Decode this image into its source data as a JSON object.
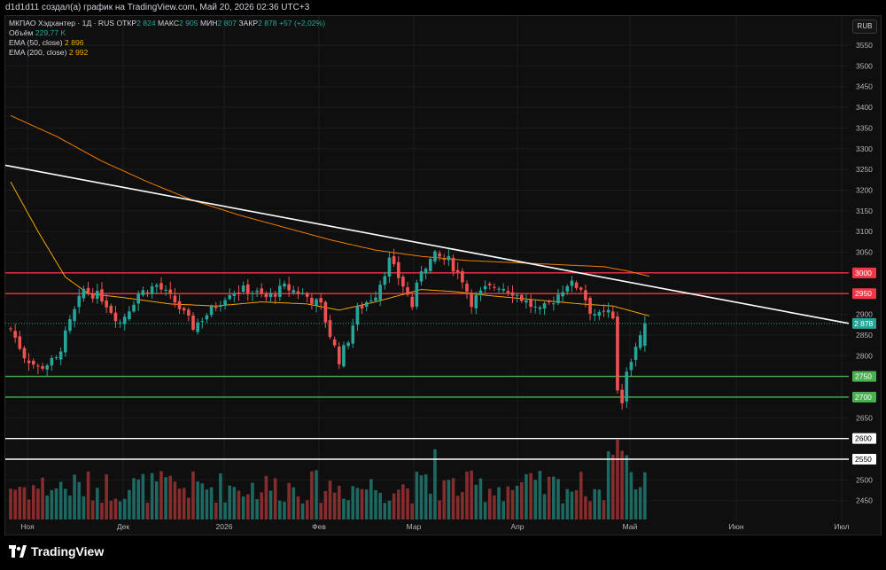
{
  "header": {
    "attribution": "d1d1d11 создал(а) график на TradingView.com, Май 20, 2026 02:36 UTC+3"
  },
  "legend": {
    "symbol": "МКПАО Хэдхантер · 1Д · RUS",
    "open_label": "ОТКР",
    "open": "2 824",
    "high_label": "МАКС",
    "high": "2 905",
    "low_label": "МИН",
    "low": "2 807",
    "close_label": "ЗАКР",
    "close": "2 878",
    "change": "+57 (+2,02%)",
    "volume_label": "Объём",
    "volume": "229,77 K",
    "ema50_label": "EMA (50, close)",
    "ema50": "2 896",
    "ema200_label": "EMA (200, close)",
    "ema200": "2 992"
  },
  "currency": "RUB",
  "logo_text": "TradingView",
  "chart_data": {
    "type": "candlestick",
    "price_axis": {
      "ticks": [
        "3550",
        "3500",
        "3450",
        "3400",
        "3350",
        "3300",
        "3250",
        "3200",
        "3150",
        "3100",
        "3050",
        "3000",
        "2950",
        "2900",
        "2850",
        "2800",
        "2750",
        "2700",
        "2650",
        "2600",
        "2550",
        "2500",
        "2450"
      ],
      "range": [
        2420,
        3570
      ]
    },
    "time_axis": {
      "labels": [
        "Ноя",
        "Дек",
        "2026",
        "Фев",
        "Мар",
        "Апр",
        "Май",
        "Июн",
        "Июл"
      ]
    },
    "horizontal_levels": [
      {
        "price": 3000,
        "label": "3000",
        "color": "#f23645"
      },
      {
        "price": 2950,
        "label": "2950",
        "color": "#f23645"
      },
      {
        "price": 2750,
        "label": "2750",
        "color": "#4caf50"
      },
      {
        "price": 2700,
        "label": "2700",
        "color": "#4caf50"
      },
      {
        "price": 2600,
        "label": "2600",
        "color": "#ffffff"
      },
      {
        "price": 2550,
        "label": "2550",
        "color": "#ffffff"
      }
    ],
    "last_price": {
      "price": 2878,
      "label": "2 878",
      "color": "#26a69a"
    },
    "trendline": {
      "from": {
        "day": 0,
        "price": 3260
      },
      "to": {
        "day": 169,
        "price": 2878
      },
      "color": "#ffffff"
    },
    "colors": {
      "up": "#26a69a",
      "down": "#ef5350",
      "ema50": "#f7a600",
      "ema200": "#f57c00"
    },
    "ema50_anchors": [
      [
        0,
        3220
      ],
      [
        6,
        3100
      ],
      [
        12,
        2990
      ],
      [
        17,
        2950
      ],
      [
        25,
        2940
      ],
      [
        35,
        2925
      ],
      [
        45,
        2920
      ],
      [
        55,
        2930
      ],
      [
        65,
        2925
      ],
      [
        72,
        2910
      ],
      [
        80,
        2930
      ],
      [
        90,
        2960
      ],
      [
        97,
        2955
      ],
      [
        105,
        2945
      ],
      [
        115,
        2935
      ],
      [
        125,
        2925
      ],
      [
        132,
        2920
      ],
      [
        137,
        2905
      ],
      [
        140,
        2896
      ]
    ],
    "ema200_anchors": [
      [
        0,
        3380
      ],
      [
        10,
        3330
      ],
      [
        20,
        3270
      ],
      [
        30,
        3220
      ],
      [
        40,
        3175
      ],
      [
        50,
        3140
      ],
      [
        60,
        3110
      ],
      [
        70,
        3080
      ],
      [
        80,
        3055
      ],
      [
        90,
        3040
      ],
      [
        100,
        3030
      ],
      [
        110,
        3025
      ],
      [
        120,
        3020
      ],
      [
        130,
        3015
      ],
      [
        135,
        3005
      ],
      [
        140,
        2992
      ]
    ],
    "price_anchors": [
      [
        0,
        2865
      ],
      [
        3,
        2800
      ],
      [
        6,
        2770
      ],
      [
        10,
        2790
      ],
      [
        13,
        2880
      ],
      [
        16,
        2960
      ],
      [
        20,
        2940
      ],
      [
        24,
        2880
      ],
      [
        28,
        2950
      ],
      [
        32,
        2970
      ],
      [
        36,
        2930
      ],
      [
        40,
        2870
      ],
      [
        44,
        2910
      ],
      [
        48,
        2955
      ],
      [
        52,
        2960
      ],
      [
        56,
        2940
      ],
      [
        60,
        2965
      ],
      [
        64,
        2950
      ],
      [
        68,
        2920
      ],
      [
        70,
        2850
      ],
      [
        72,
        2790
      ],
      [
        74,
        2840
      ],
      [
        76,
        2910
      ],
      [
        80,
        2950
      ],
      [
        83,
        3030
      ],
      [
        86,
        2970
      ],
      [
        88,
        2920
      ],
      [
        90,
        3010
      ],
      [
        93,
        3040
      ],
      [
        96,
        3030
      ],
      [
        99,
        2985
      ],
      [
        101,
        2930
      ],
      [
        104,
        2960
      ],
      [
        107,
        2970
      ],
      [
        110,
        2955
      ],
      [
        113,
        2930
      ],
      [
        116,
        2905
      ],
      [
        119,
        2935
      ],
      [
        122,
        2975
      ],
      [
        125,
        2965
      ],
      [
        127,
        2910
      ],
      [
        129,
        2895
      ],
      [
        131,
        2905
      ],
      [
        132,
        2880
      ],
      [
        133,
        2720
      ],
      [
        134,
        2690
      ],
      [
        135,
        2770
      ],
      [
        137,
        2815
      ],
      [
        139,
        2878
      ]
    ],
    "volume": {
      "baseline_price": 2440,
      "max_value": 400
    }
  }
}
